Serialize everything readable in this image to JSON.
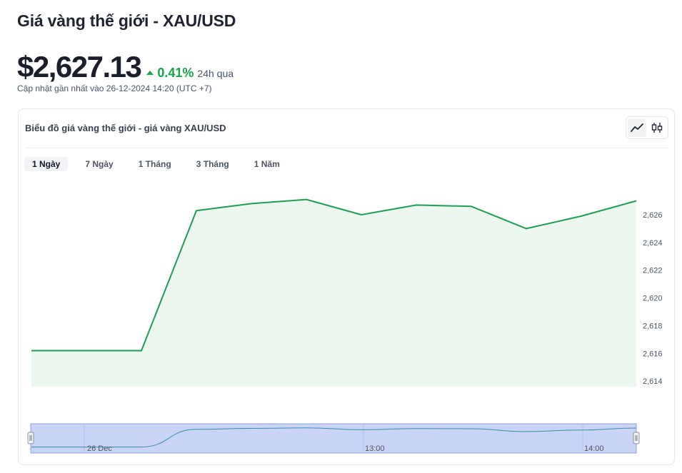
{
  "header": {
    "title": "Giá vàng thế giới - XAU/USD",
    "price": "$2,627.13",
    "change_pct": "0.41%",
    "change_period": "24h qua",
    "updated": "Cập nhật gần nhất vào 26-12-2024 14:20 (UTC +7)"
  },
  "card": {
    "title": "Biểu đồ giá vàng thế giới - giá vàng XAU/USD",
    "view_icons": [
      "line-chart-icon",
      "candlestick-icon"
    ],
    "active_view": "line"
  },
  "ranges": [
    {
      "label": "1 Ngày",
      "active": true
    },
    {
      "label": "7 Ngày",
      "active": false
    },
    {
      "label": "1 Tháng",
      "active": false
    },
    {
      "label": "3 Tháng",
      "active": false
    },
    {
      "label": "1 Năm",
      "active": false
    }
  ],
  "navigator": {
    "labels": [
      "26 Dec",
      "13:00",
      "14:00"
    ]
  },
  "colors": {
    "line": "#1f9d55",
    "area": "#ecf7f0",
    "positive": "#16a34a",
    "navigator_fill": "#c9d4f6",
    "navigator_line": "#3b8ea5"
  },
  "chart_data": {
    "type": "area",
    "x_index": [
      0,
      1,
      2,
      3,
      4,
      5,
      6,
      7,
      8,
      9,
      10,
      11
    ],
    "values": [
      2616.2,
      2616.2,
      2616.2,
      2626.3,
      2626.8,
      2627.1,
      2626.0,
      2626.7,
      2626.6,
      2625.0,
      2625.9,
      2627.0
    ],
    "yticks": [
      2614,
      2616,
      2618,
      2620,
      2622,
      2624,
      2626
    ],
    "ylim": [
      2613.6,
      2627.8
    ],
    "grid": false,
    "legend": "none",
    "y_axis_position": "right"
  }
}
